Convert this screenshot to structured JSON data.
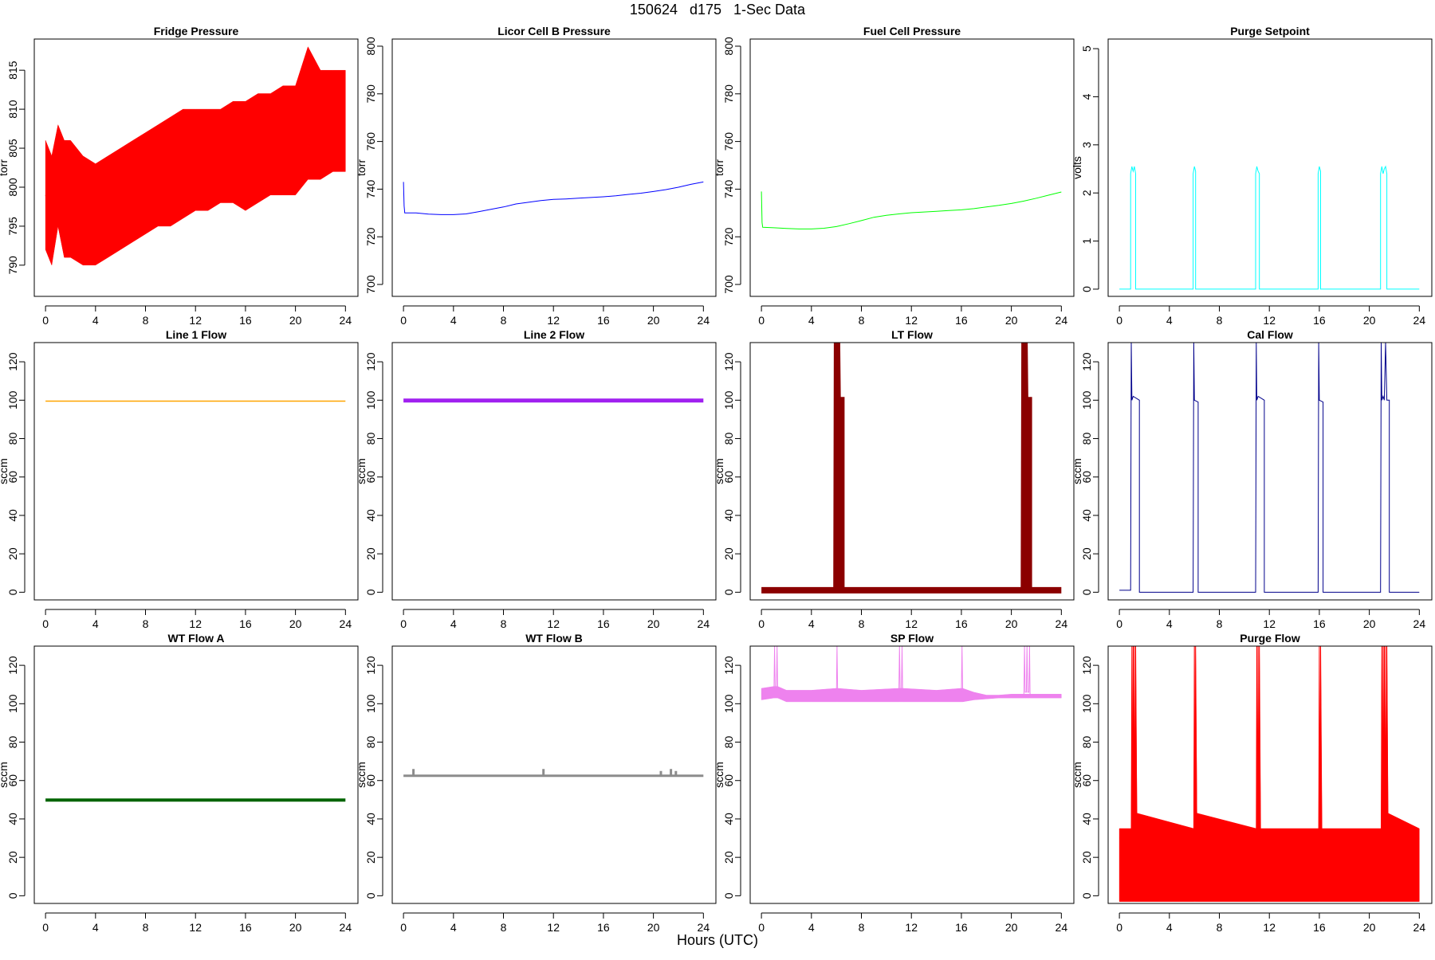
{
  "figure": {
    "title": "150624   d175   1-Sec Data",
    "xlabel": "Hours (UTC)"
  },
  "chart_data": [
    {
      "type": "line",
      "title": "Fridge Pressure",
      "ylabel": "torr",
      "color": "#ff0000",
      "xlim": [
        -0.9,
        25.0
      ],
      "xticks": [
        0,
        4,
        8,
        12,
        16,
        20,
        24
      ],
      "ylim": [
        786,
        819
      ],
      "yticks": [
        790,
        795,
        800,
        805,
        810,
        815
      ],
      "band_width": 1,
      "series": [
        {
          "x": [
            0,
            0.5,
            1,
            1.5,
            2,
            3,
            4,
            5,
            6,
            7,
            8,
            9,
            10,
            11,
            12,
            13,
            14,
            15,
            16,
            17,
            18,
            19,
            20,
            21,
            22,
            23,
            24
          ],
          "y": [
            799,
            797,
            800,
            798,
            798,
            797,
            796,
            797,
            798,
            799,
            800,
            801,
            801,
            802,
            803,
            803,
            804,
            804,
            804,
            805,
            806,
            806,
            806,
            807,
            807,
            808,
            808
          ],
          "ymin": [
            792,
            790,
            795,
            791,
            791,
            790,
            790,
            791,
            792,
            793,
            794,
            795,
            795,
            796,
            797,
            797,
            798,
            798,
            797,
            798,
            799,
            799,
            799,
            801,
            801,
            802,
            802
          ],
          "ymax": [
            806,
            804,
            808,
            806,
            806,
            804,
            803,
            804,
            805,
            806,
            807,
            808,
            809,
            810,
            810,
            810,
            810,
            811,
            811,
            812,
            812,
            813,
            813,
            818,
            815,
            815,
            815
          ]
        }
      ]
    },
    {
      "type": "line",
      "title": "Licor Cell B Pressure",
      "ylabel": "torr",
      "color": "#0000ff",
      "xlim": [
        -0.9,
        25.0
      ],
      "xticks": [
        0,
        4,
        8,
        12,
        16,
        20,
        24
      ],
      "ylim": [
        695,
        803
      ],
      "yticks": [
        700,
        720,
        740,
        760,
        780,
        800
      ],
      "band_width": 1,
      "series": [
        {
          "x": [
            0,
            0.05,
            0.1,
            1,
            2,
            3,
            4,
            5,
            6,
            7,
            8,
            9,
            10,
            11,
            12,
            13,
            14,
            15,
            16,
            17,
            18,
            19,
            20,
            21,
            22,
            23,
            24
          ],
          "y": [
            743,
            733,
            730,
            730,
            729.5,
            729.3,
            729.3,
            729.6,
            730.5,
            731.5,
            732.5,
            733.8,
            734.5,
            735.2,
            735.7,
            735.9,
            736.2,
            736.5,
            736.8,
            737.2,
            737.8,
            738.3,
            739,
            739.8,
            740.8,
            742,
            743
          ]
        }
      ]
    },
    {
      "type": "line",
      "title": "Fuel Cell Pressure",
      "ylabel": "torr",
      "color": "#00ff00",
      "xlim": [
        -0.9,
        25.0
      ],
      "xticks": [
        0,
        4,
        8,
        12,
        16,
        20,
        24
      ],
      "ylim": [
        695,
        803
      ],
      "yticks": [
        700,
        720,
        740,
        760,
        780,
        800
      ],
      "band_width": 1,
      "series": [
        {
          "x": [
            0,
            0.05,
            0.1,
            1,
            2,
            3,
            4,
            5,
            6,
            7,
            8,
            9,
            10,
            11,
            12,
            13,
            14,
            15,
            16,
            17,
            18,
            19,
            20,
            21,
            22,
            23,
            24
          ],
          "y": [
            739,
            726,
            724,
            723.8,
            723.5,
            723.3,
            723.3,
            723.6,
            724.3,
            725.5,
            726.8,
            728.2,
            729,
            729.6,
            730.1,
            730.4,
            730.7,
            731,
            731.3,
            731.8,
            732.5,
            733.2,
            734,
            735,
            736.2,
            737.5,
            738.8
          ]
        }
      ]
    },
    {
      "type": "line",
      "title": "Purge Setpoint",
      "ylabel": "volts",
      "color": "#00ffff",
      "xlim": [
        -0.9,
        25.0
      ],
      "xticks": [
        0,
        4,
        8,
        12,
        16,
        20,
        24
      ],
      "ylim": [
        -0.15,
        5.2
      ],
      "yticks": [
        0,
        1,
        2,
        3,
        4,
        5
      ],
      "band_width": 1,
      "series": [
        {
          "x": [
            0,
            0.9,
            0.9,
            1.0,
            1.1,
            1.2,
            1.3,
            1.3,
            5.9,
            5.9,
            6.0,
            6.1,
            6.1,
            10.9,
            10.9,
            11.0,
            11.1,
            11.2,
            11.2,
            15.9,
            15.9,
            16.0,
            16.1,
            16.1,
            20.9,
            20.9,
            21.0,
            21.1,
            21.2,
            21.3,
            21.4,
            21.4,
            24
          ],
          "y": [
            0,
            0,
            2.4,
            2.55,
            2.45,
            2.55,
            2.4,
            0,
            0,
            2.4,
            2.55,
            2.45,
            0,
            0,
            2.4,
            2.55,
            2.45,
            2.4,
            0,
            0,
            2.4,
            2.55,
            2.45,
            0,
            0,
            2.4,
            2.55,
            2.4,
            2.5,
            2.55,
            2.4,
            0,
            0
          ]
        }
      ]
    },
    {
      "type": "line",
      "title": "Line 1 Flow",
      "ylabel": "sccm",
      "color": "#ffa500",
      "xlim": [
        -0.9,
        25.0
      ],
      "xticks": [
        0,
        4,
        8,
        12,
        16,
        20,
        24
      ],
      "ylim": [
        -4,
        130
      ],
      "yticks": [
        0,
        20,
        40,
        60,
        80,
        100,
        120
      ],
      "band_width": 1.5,
      "series": [
        {
          "x": [
            0,
            24
          ],
          "y": [
            99.5,
            99.5
          ]
        }
      ]
    },
    {
      "type": "line",
      "title": "Line 2 Flow",
      "ylabel": "sccm",
      "color": "#a020f0",
      "xlim": [
        -0.9,
        25.0
      ],
      "xticks": [
        0,
        4,
        8,
        12,
        16,
        20,
        24
      ],
      "ylim": [
        -4,
        130
      ],
      "yticks": [
        0,
        20,
        40,
        60,
        80,
        100,
        120
      ],
      "band_width": 5,
      "series": [
        {
          "x": [
            0,
            24
          ],
          "y": [
            99.8,
            99.8
          ]
        }
      ]
    },
    {
      "type": "line",
      "title": "LT Flow",
      "ylabel": "sccm",
      "color": "#8b0000",
      "xlim": [
        -0.9,
        25.0
      ],
      "xticks": [
        0,
        4,
        8,
        12,
        16,
        20,
        24
      ],
      "ylim": [
        -4,
        130
      ],
      "yticks": [
        0,
        20,
        40,
        60,
        80,
        100,
        120
      ],
      "band_width": 8,
      "series": [
        {
          "x": [
            0,
            6.0,
            6.05,
            6.1,
            6.1,
            6.4,
            6.4,
            21.0,
            21.05,
            21.1,
            21.1,
            21.4,
            21.4,
            24
          ],
          "y": [
            1,
            1,
            130,
            100,
            100,
            100,
            1,
            1,
            130,
            100,
            100,
            100,
            1,
            1
          ]
        }
      ]
    },
    {
      "type": "line",
      "title": "Cal Flow",
      "ylabel": "sccm",
      "color": "#00008b",
      "xlim": [
        -0.9,
        25.0
      ],
      "xticks": [
        0,
        4,
        8,
        12,
        16,
        20,
        24
      ],
      "ylim": [
        -4,
        130
      ],
      "yticks": [
        0,
        20,
        40,
        60,
        80,
        100,
        120
      ],
      "band_width": 1,
      "series": [
        {
          "x": [
            0,
            0.9,
            0.95,
            1.0,
            1.1,
            1.6,
            1.6,
            5.9,
            5.95,
            6.0,
            6.3,
            6.3,
            10.9,
            10.95,
            11.0,
            11.1,
            11.6,
            11.6,
            15.9,
            15.95,
            16.0,
            16.3,
            16.3,
            20.9,
            20.95,
            21.0,
            21.1,
            21.2,
            21.3,
            21.4,
            21.6,
            21.6,
            24
          ],
          "y": [
            1,
            1,
            130,
            100,
            102,
            100,
            0,
            0,
            130,
            100,
            99,
            0,
            0,
            130,
            100,
            102,
            100,
            0,
            0,
            130,
            100,
            99,
            0,
            0,
            130,
            100,
            102,
            100,
            130,
            100,
            100,
            0,
            0
          ]
        }
      ]
    },
    {
      "type": "line",
      "title": "WT Flow A",
      "ylabel": "sccm",
      "color": "#006400",
      "xlim": [
        -0.9,
        25.0
      ],
      "xticks": [
        0,
        4,
        8,
        12,
        16,
        20,
        24
      ],
      "ylim": [
        -4,
        130
      ],
      "yticks": [
        0,
        20,
        40,
        60,
        80,
        100,
        120
      ],
      "band_width": 4,
      "series": [
        {
          "x": [
            0,
            24
          ],
          "y": [
            49.8,
            49.8
          ]
        }
      ]
    },
    {
      "type": "line",
      "title": "WT Flow B",
      "ylabel": "sccm",
      "color": "#8c8c8c",
      "xlim": [
        -0.9,
        25.0
      ],
      "xticks": [
        0,
        4,
        8,
        12,
        16,
        20,
        24
      ],
      "ylim": [
        -4,
        130
      ],
      "yticks": [
        0,
        20,
        40,
        60,
        80,
        100,
        120
      ],
      "band_width": 3,
      "series": [
        {
          "x": [
            0,
            0.8,
            0.8,
            0.8,
            11.2,
            11.2,
            11.2,
            20.6,
            20.6,
            20.6,
            21.4,
            21.4,
            21.4,
            21.8,
            21.8,
            21.8,
            24
          ],
          "y": [
            62.5,
            62.5,
            66,
            62.5,
            62.5,
            66,
            62.5,
            62.5,
            65,
            62.5,
            62.5,
            66,
            62.5,
            62.5,
            65,
            62.5,
            62.5
          ]
        }
      ]
    },
    {
      "type": "line",
      "title": "SP Flow",
      "ylabel": "sccm",
      "color": "#ee82ee",
      "xlim": [
        -0.9,
        25.0
      ],
      "xticks": [
        0,
        4,
        8,
        12,
        16,
        20,
        24
      ],
      "ylim": [
        -4,
        130
      ],
      "yticks": [
        0,
        20,
        40,
        60,
        80,
        100,
        120
      ],
      "band_width": 1,
      "series": [
        {
          "x": [
            0,
            1.0,
            1.05,
            1.1,
            1.2,
            1.25,
            1.3,
            2,
            4,
            6.0,
            6.05,
            6.1,
            8,
            11.0,
            11.05,
            11.1,
            11.2,
            11.25,
            11.3,
            14,
            16.0,
            16.05,
            16.1,
            17,
            18,
            19,
            20,
            21.0,
            21.05,
            21.1,
            21.2,
            21.25,
            21.3,
            21.4,
            21.45,
            21.5,
            22,
            23,
            24
          ],
          "y": [
            105,
            106,
            130,
            106,
            106,
            130,
            106,
            104,
            104,
            105,
            130,
            106,
            104,
            105,
            130,
            106,
            106,
            130,
            106,
            104,
            105,
            130,
            106,
            104,
            103.5,
            103.5,
            104,
            104,
            130,
            106,
            106,
            130,
            106,
            106,
            130,
            104,
            104,
            104,
            104
          ],
          "ymin": [
            102,
            103,
            103,
            103,
            103,
            103,
            103,
            101,
            101,
            101,
            101,
            101,
            101,
            101,
            101,
            101,
            101,
            101,
            101,
            101,
            101,
            101,
            101,
            102,
            102.5,
            103,
            103,
            103,
            103,
            103,
            103,
            103,
            103,
            103,
            103,
            103,
            103,
            103,
            103
          ],
          "ymax": [
            108,
            109,
            109,
            109,
            109,
            109,
            109,
            107,
            107,
            108,
            108,
            108,
            107,
            108,
            108,
            108,
            108,
            108,
            108,
            107,
            108,
            108,
            108,
            106,
            104.5,
            104.5,
            105,
            105,
            105,
            105,
            105,
            105,
            105,
            105,
            105,
            105,
            105,
            105,
            105
          ]
        }
      ]
    },
    {
      "type": "line",
      "title": "Purge Flow",
      "ylabel": "sccm",
      "color": "#ff0000",
      "xlim": [
        -0.9,
        25.0
      ],
      "xticks": [
        0,
        4,
        8,
        12,
        16,
        20,
        24
      ],
      "ylim": [
        -4,
        130
      ],
      "yticks": [
        0,
        20,
        40,
        60,
        80,
        100,
        120
      ],
      "band_width": 1,
      "series": [
        {
          "x": [
            0,
            0.95,
            1.0,
            1.05,
            1.1,
            1.15,
            1.2,
            1.25,
            1.3,
            1.4,
            5.95,
            6.0,
            6.05,
            6.1,
            6.2,
            10.95,
            11.0,
            11.05,
            11.1,
            11.15,
            11.2,
            11.3,
            15.95,
            16.0,
            16.05,
            16.1,
            16.2,
            20.95,
            21.0,
            21.05,
            21.1,
            21.15,
            21.2,
            21.25,
            21.3,
            21.35,
            21.4,
            21.5,
            24
          ],
          "y": [
            30,
            30,
            130,
            0,
            130,
            0,
            130,
            0,
            130,
            30,
            30,
            130,
            0,
            130,
            30,
            30,
            130,
            0,
            130,
            0,
            130,
            30,
            30,
            130,
            0,
            130,
            30,
            30,
            130,
            0,
            130,
            0,
            130,
            0,
            130,
            0,
            130,
            30,
            30
          ],
          "ymin": [
            -3,
            -3,
            -3,
            -3,
            -3,
            -3,
            -3,
            -3,
            -3,
            -3,
            -3,
            -3,
            -3,
            -3,
            -3,
            -3,
            -3,
            -3,
            -3,
            -3,
            -3,
            -3,
            -3,
            -3,
            -3,
            -3,
            -3,
            -3,
            -3,
            -3,
            -3,
            -3,
            -3,
            -3,
            -3,
            -3,
            -3,
            -3,
            -3
          ],
          "ymax": [
            35,
            35,
            130,
            35,
            130,
            35,
            130,
            35,
            130,
            43,
            35,
            130,
            35,
            130,
            43,
            35,
            130,
            35,
            130,
            35,
            130,
            35,
            35,
            130,
            35,
            130,
            35,
            35,
            130,
            35,
            130,
            35,
            130,
            35,
            130,
            35,
            130,
            43,
            35
          ]
        }
      ]
    }
  ]
}
